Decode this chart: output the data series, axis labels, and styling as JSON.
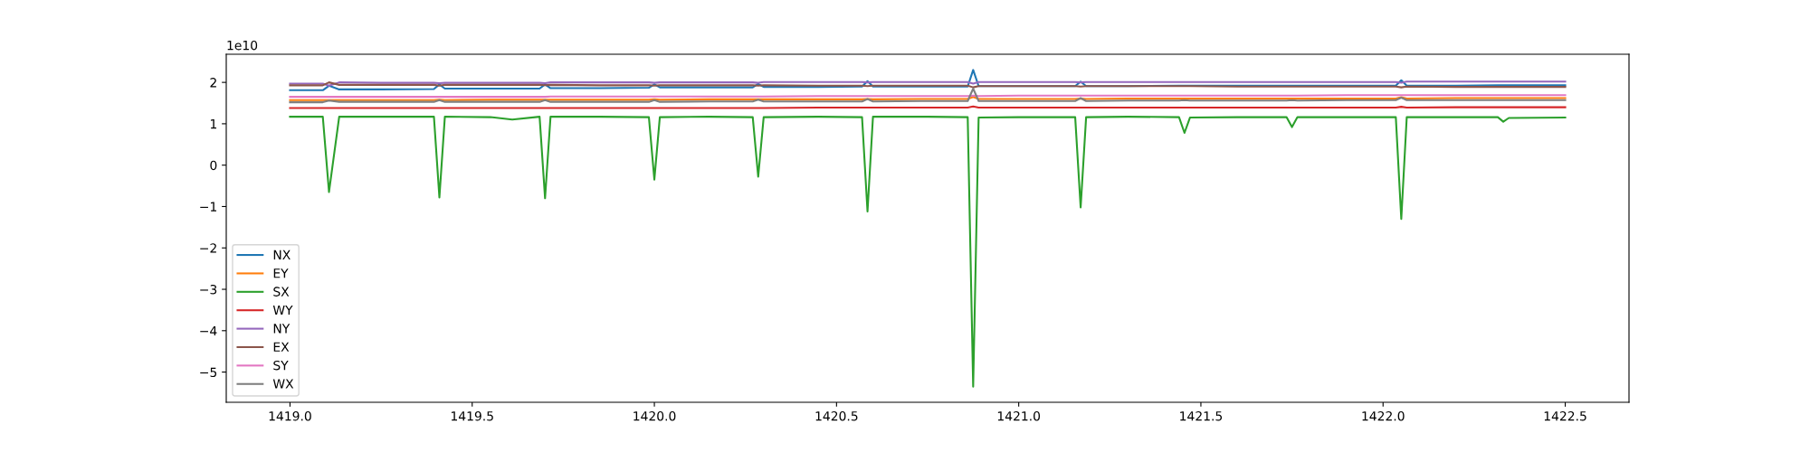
{
  "chart_data": {
    "type": "line",
    "x": [
      1419.0,
      1419.09,
      1419.107,
      1419.135,
      1419.25,
      1419.395,
      1419.41,
      1419.425,
      1419.55,
      1419.61,
      1419.685,
      1419.7,
      1419.715,
      1419.85,
      1419.985,
      1420.0,
      1420.015,
      1420.15,
      1420.27,
      1420.285,
      1420.3,
      1420.45,
      1420.57,
      1420.585,
      1420.6,
      1420.75,
      1420.86,
      1420.875,
      1420.89,
      1421.0,
      1421.155,
      1421.17,
      1421.185,
      1421.3,
      1421.44,
      1421.455,
      1421.47,
      1421.6,
      1421.735,
      1421.75,
      1421.765,
      1421.9,
      1422.035,
      1422.05,
      1422.065,
      1422.2,
      1422.315,
      1422.33,
      1422.345,
      1422.5
    ],
    "series": [
      {
        "name": "NX",
        "color": "#1f77b4",
        "values": [
          1.81,
          1.81,
          1.92,
          1.83,
          1.83,
          1.84,
          1.95,
          1.85,
          1.85,
          1.85,
          1.85,
          1.95,
          1.86,
          1.86,
          1.87,
          1.95,
          1.88,
          1.88,
          1.88,
          1.96,
          1.89,
          1.89,
          1.9,
          2.03,
          1.9,
          1.9,
          1.9,
          2.3,
          1.91,
          1.91,
          1.91,
          2.02,
          1.91,
          1.91,
          1.92,
          1.92,
          1.92,
          1.92,
          1.92,
          1.92,
          1.92,
          1.92,
          1.92,
          2.05,
          1.92,
          1.92,
          1.93,
          1.93,
          1.93,
          1.93
        ]
      },
      {
        "name": "EY",
        "color": "#ff7f0e",
        "values": [
          1.57,
          1.57,
          1.57,
          1.57,
          1.57,
          1.57,
          1.58,
          1.57,
          1.58,
          1.58,
          1.58,
          1.58,
          1.58,
          1.58,
          1.58,
          1.59,
          1.58,
          1.59,
          1.59,
          1.59,
          1.59,
          1.59,
          1.59,
          1.6,
          1.59,
          1.6,
          1.6,
          1.65,
          1.6,
          1.6,
          1.6,
          1.61,
          1.6,
          1.61,
          1.61,
          1.61,
          1.61,
          1.61,
          1.61,
          1.61,
          1.61,
          1.61,
          1.61,
          1.64,
          1.61,
          1.62,
          1.62,
          1.62,
          1.62,
          1.62
        ]
      },
      {
        "name": "SX",
        "color": "#2ca02c",
        "values": [
          1.17,
          1.17,
          -0.65,
          1.17,
          1.17,
          1.17,
          -0.78,
          1.17,
          1.16,
          1.1,
          1.17,
          -0.8,
          1.17,
          1.17,
          1.16,
          -0.35,
          1.16,
          1.17,
          1.16,
          -0.28,
          1.16,
          1.17,
          1.16,
          -1.12,
          1.17,
          1.17,
          1.16,
          -5.35,
          1.15,
          1.16,
          1.16,
          -1.02,
          1.16,
          1.17,
          1.16,
          0.78,
          1.15,
          1.16,
          1.16,
          0.92,
          1.16,
          1.16,
          1.16,
          -1.3,
          1.16,
          1.16,
          1.16,
          1.05,
          1.14,
          1.15
        ]
      },
      {
        "name": "WY",
        "color": "#d62728",
        "values": [
          1.38,
          1.38,
          1.38,
          1.38,
          1.38,
          1.38,
          1.38,
          1.38,
          1.38,
          1.38,
          1.38,
          1.38,
          1.38,
          1.38,
          1.38,
          1.38,
          1.38,
          1.38,
          1.38,
          1.38,
          1.38,
          1.39,
          1.39,
          1.39,
          1.39,
          1.39,
          1.39,
          1.42,
          1.39,
          1.39,
          1.39,
          1.39,
          1.39,
          1.39,
          1.39,
          1.39,
          1.39,
          1.39,
          1.39,
          1.39,
          1.39,
          1.39,
          1.39,
          1.41,
          1.39,
          1.4,
          1.4,
          1.4,
          1.4,
          1.4
        ]
      },
      {
        "name": "NY",
        "color": "#9467bd",
        "values": [
          1.97,
          1.97,
          1.92,
          2.0,
          1.99,
          1.99,
          1.98,
          1.99,
          1.99,
          1.99,
          1.99,
          1.98,
          2.0,
          2.0,
          2.0,
          1.99,
          2.0,
          2.0,
          2.0,
          1.99,
          2.01,
          2.01,
          2.01,
          2.0,
          2.01,
          2.01,
          2.01,
          1.97,
          2.01,
          2.01,
          2.01,
          2.0,
          2.01,
          2.01,
          2.01,
          2.01,
          2.01,
          2.01,
          2.01,
          2.01,
          2.01,
          2.01,
          2.01,
          1.99,
          2.02,
          2.02,
          2.02,
          2.02,
          2.02,
          2.02
        ]
      },
      {
        "name": "EX",
        "color": "#8c564b",
        "values": [
          1.93,
          1.93,
          2.0,
          1.94,
          1.94,
          1.94,
          1.92,
          1.94,
          1.94,
          1.94,
          1.94,
          1.93,
          1.94,
          1.93,
          1.93,
          1.92,
          1.93,
          1.93,
          1.93,
          1.92,
          1.93,
          1.92,
          1.92,
          1.91,
          1.92,
          1.92,
          1.92,
          1.88,
          1.91,
          1.91,
          1.91,
          1.9,
          1.91,
          1.91,
          1.91,
          1.91,
          1.91,
          1.9,
          1.9,
          1.9,
          1.9,
          1.9,
          1.9,
          1.88,
          1.9,
          1.89,
          1.89,
          1.89,
          1.89,
          1.89
        ]
      },
      {
        "name": "SY",
        "color": "#e377c2",
        "values": [
          1.65,
          1.65,
          1.65,
          1.65,
          1.65,
          1.65,
          1.65,
          1.65,
          1.65,
          1.65,
          1.65,
          1.65,
          1.66,
          1.66,
          1.66,
          1.66,
          1.66,
          1.66,
          1.66,
          1.66,
          1.66,
          1.67,
          1.67,
          1.67,
          1.67,
          1.67,
          1.67,
          1.68,
          1.67,
          1.68,
          1.68,
          1.68,
          1.68,
          1.68,
          1.68,
          1.68,
          1.68,
          1.68,
          1.68,
          1.68,
          1.68,
          1.69,
          1.69,
          1.69,
          1.69,
          1.69,
          1.69,
          1.69,
          1.69,
          1.69
        ]
      },
      {
        "name": "WX",
        "color": "#7f7f7f",
        "values": [
          1.52,
          1.52,
          1.56,
          1.53,
          1.53,
          1.53,
          1.57,
          1.53,
          1.53,
          1.53,
          1.53,
          1.57,
          1.53,
          1.53,
          1.53,
          1.57,
          1.53,
          1.54,
          1.54,
          1.58,
          1.54,
          1.54,
          1.54,
          1.6,
          1.54,
          1.55,
          1.55,
          1.85,
          1.55,
          1.55,
          1.55,
          1.62,
          1.55,
          1.56,
          1.56,
          1.57,
          1.56,
          1.56,
          1.56,
          1.57,
          1.56,
          1.57,
          1.57,
          1.63,
          1.57,
          1.57,
          1.57,
          1.57,
          1.57,
          1.57
        ]
      }
    ],
    "xlim": [
      1418.825,
      1422.675
    ],
    "ylim": [
      -5.73,
      2.68
    ],
    "xticks": [
      {
        "value": 1419.0,
        "label": "1419.0"
      },
      {
        "value": 1419.5,
        "label": "1419.5"
      },
      {
        "value": 1420.0,
        "label": "1420.0"
      },
      {
        "value": 1420.5,
        "label": "1420.5"
      },
      {
        "value": 1421.0,
        "label": "1421.0"
      },
      {
        "value": 1421.5,
        "label": "1421.5"
      },
      {
        "value": 1422.0,
        "label": "1422.0"
      },
      {
        "value": 1422.5,
        "label": "1422.5"
      }
    ],
    "yticks": [
      {
        "value": -5,
        "label": "−5"
      },
      {
        "value": -4,
        "label": "−4"
      },
      {
        "value": -3,
        "label": "−3"
      },
      {
        "value": -2,
        "label": "−2"
      },
      {
        "value": -1,
        "label": "−1"
      },
      0,
      1,
      2
    ],
    "annotations": [
      "1e10"
    ],
    "legend": "lower left",
    "grid": false,
    "marker": "none",
    "line_style": "solid"
  }
}
